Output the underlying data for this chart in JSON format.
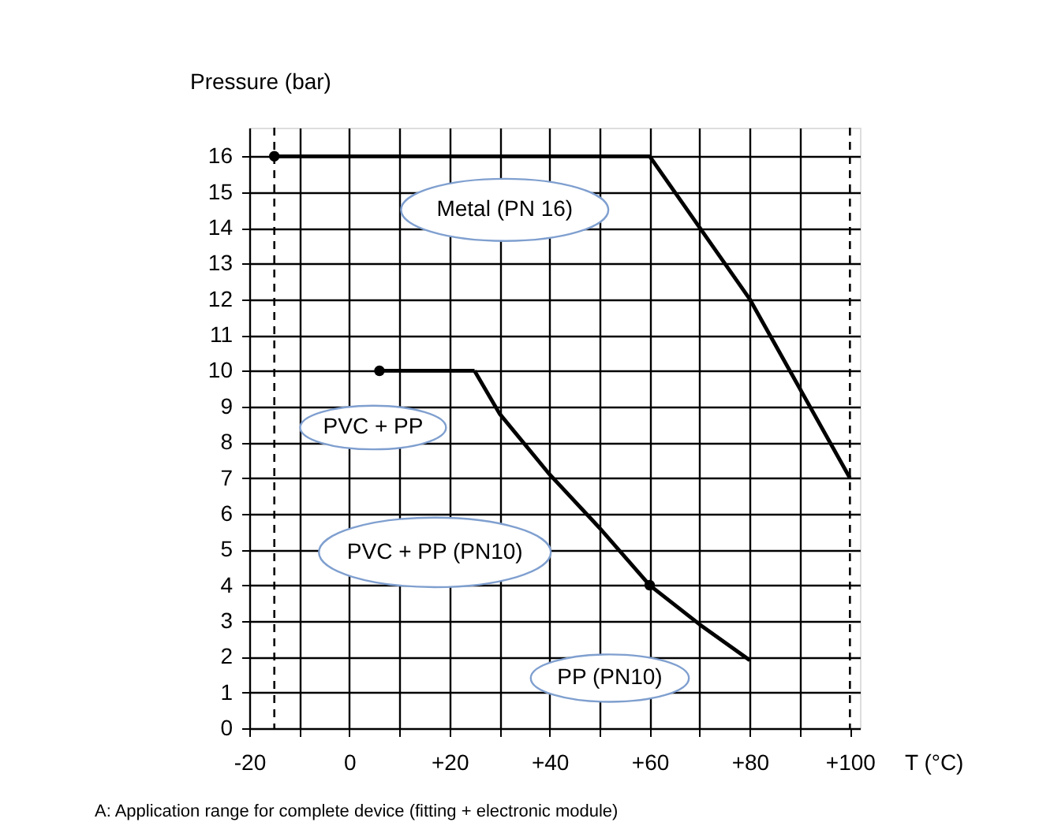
{
  "chart_data": {
    "type": "line",
    "ylabel": "Pressure (bar)",
    "xlabel": "T (°C)",
    "xlim": [
      -20,
      102
    ],
    "ylim": [
      0,
      16.8
    ],
    "xticks": [
      {
        "value": -20,
        "label": "-20"
      },
      {
        "value": -10,
        "label": null
      },
      0,
      {
        "value": 10,
        "label": null
      },
      {
        "value": 20,
        "label": "+20"
      },
      {
        "value": 30,
        "label": null
      },
      {
        "value": 40,
        "label": "+40"
      },
      {
        "value": 50,
        "label": null
      },
      {
        "value": 60,
        "label": "+60"
      },
      {
        "value": 70,
        "label": null
      },
      {
        "value": 80,
        "label": "+80"
      },
      {
        "value": 90,
        "label": null
      },
      {
        "value": 100,
        "label": "+100"
      }
    ],
    "yticks": [
      0,
      1,
      2,
      3,
      4,
      5,
      6,
      7,
      8,
      9,
      10,
      11,
      12,
      13,
      14,
      15,
      16
    ],
    "grid": true,
    "line_style": "solid",
    "series": [
      {
        "name": "Metal (PN 16)",
        "color": "#000000",
        "x": [
          -15,
          60,
          80,
          100
        ],
        "values": [
          16,
          16,
          12,
          7
        ]
      },
      {
        "name": "PVC + PP",
        "color": "#000000",
        "x": [
          6,
          25
        ],
        "values": [
          10,
          10
        ]
      },
      {
        "name": "PVC + PP (PN10)",
        "color": "#000000",
        "x": [
          25,
          30,
          40,
          50,
          60
        ],
        "values": [
          10,
          8.8,
          7.1,
          5.6,
          4
        ]
      },
      {
        "name": "PP (PN10)",
        "color": "#000000",
        "x": [
          60,
          70,
          80
        ],
        "values": [
          4,
          2.9,
          1.9
        ]
      },
      {
        "type": "scatter",
        "marker": "circle",
        "color": "#000000",
        "x": [
          -15,
          6,
          60
        ],
        "values": [
          16,
          10,
          4
        ]
      }
    ],
    "ref_lines": [
      {
        "axis": "x",
        "value": -15,
        "line_style": "dashed",
        "color": "#000000"
      },
      {
        "axis": "x",
        "value": 100,
        "line_style": "dashed",
        "color": "#000000"
      }
    ],
    "annotations": [
      "A: Application range for complete device (fitting + electronic module)"
    ]
  }
}
